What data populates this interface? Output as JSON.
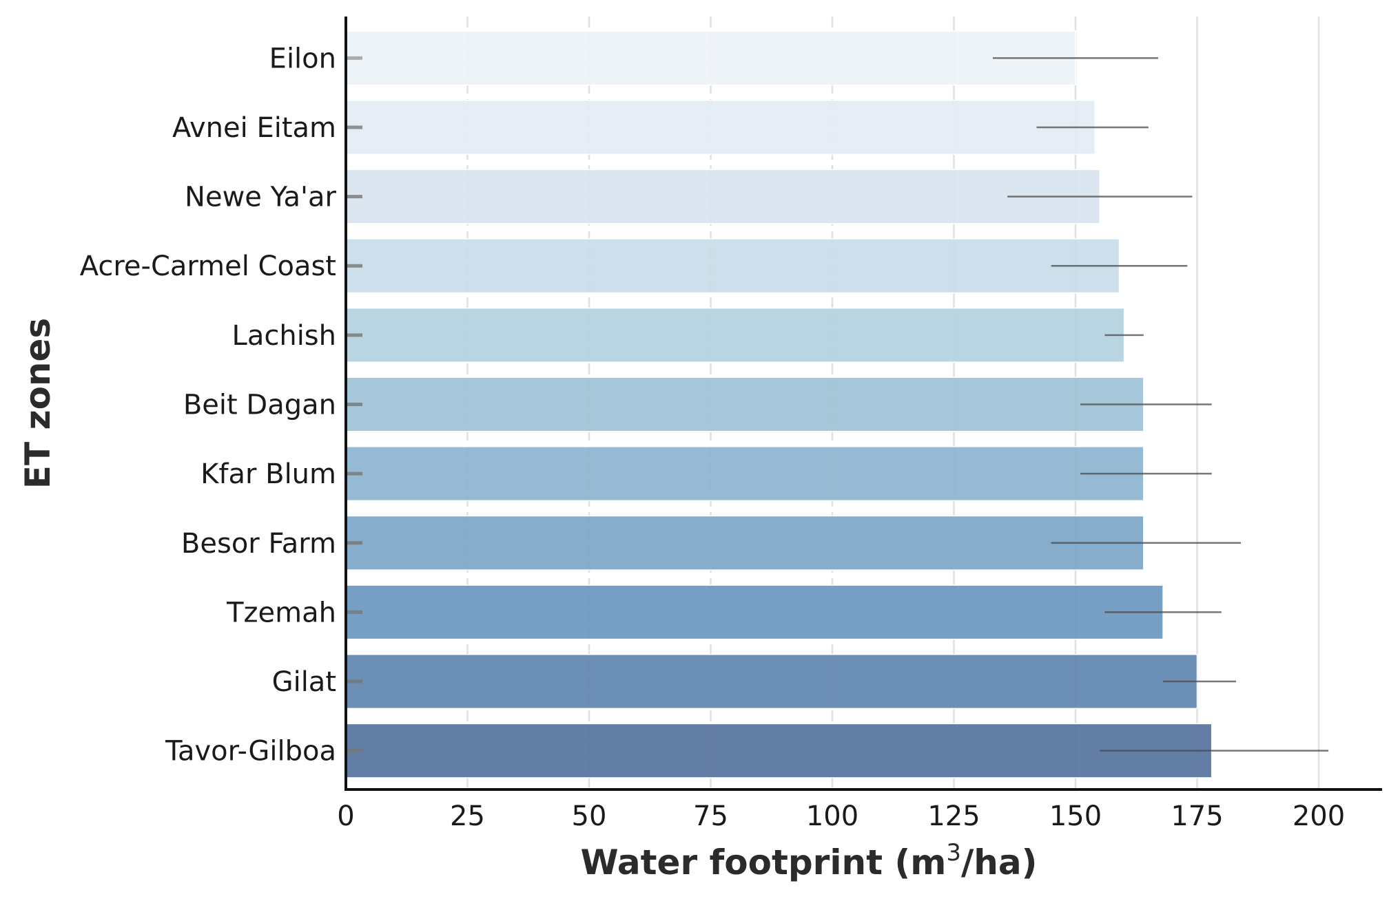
{
  "chart_data": {
    "type": "bar",
    "orientation": "horizontal",
    "xlabel": {
      "prefix": "Water footprint (m",
      "sup": "3",
      "suffix": "/ha)"
    },
    "ylabel": "ET zones",
    "xlim": [
      0,
      212
    ],
    "xticks": [
      0,
      25,
      50,
      75,
      100,
      125,
      150,
      175,
      200
    ],
    "grid": "vertical dashed (25, 50, 75, 100), solid (125, 150, 175, 200)",
    "categories": [
      "Eilon",
      "Avnei Eitam",
      "Newe Ya'ar",
      "Acre-Carmel Coast",
      "Lachish",
      "Beit Dagan",
      "Kfar Blum",
      "Besor Farm",
      "Tzemah",
      "Gilat",
      "Tavor-Gilboa"
    ],
    "values": [
      150,
      154,
      155,
      159,
      160,
      164,
      164,
      164,
      168,
      175,
      178
    ],
    "error_low": [
      133,
      142,
      136,
      145,
      156,
      151,
      151,
      145,
      156,
      168,
      155
    ],
    "error_high": [
      167,
      165,
      174,
      173,
      164,
      178,
      178,
      184,
      180,
      183,
      202
    ],
    "colors": [
      "#eef3f8",
      "#e4ecf4",
      "#d9e4ef",
      "#c8dce8",
      "#b3d1df",
      "#9ec2d6",
      "#8db4cf",
      "#7da6c8",
      "#6b97bf",
      "#5f86b0",
      "#56739c"
    ]
  }
}
